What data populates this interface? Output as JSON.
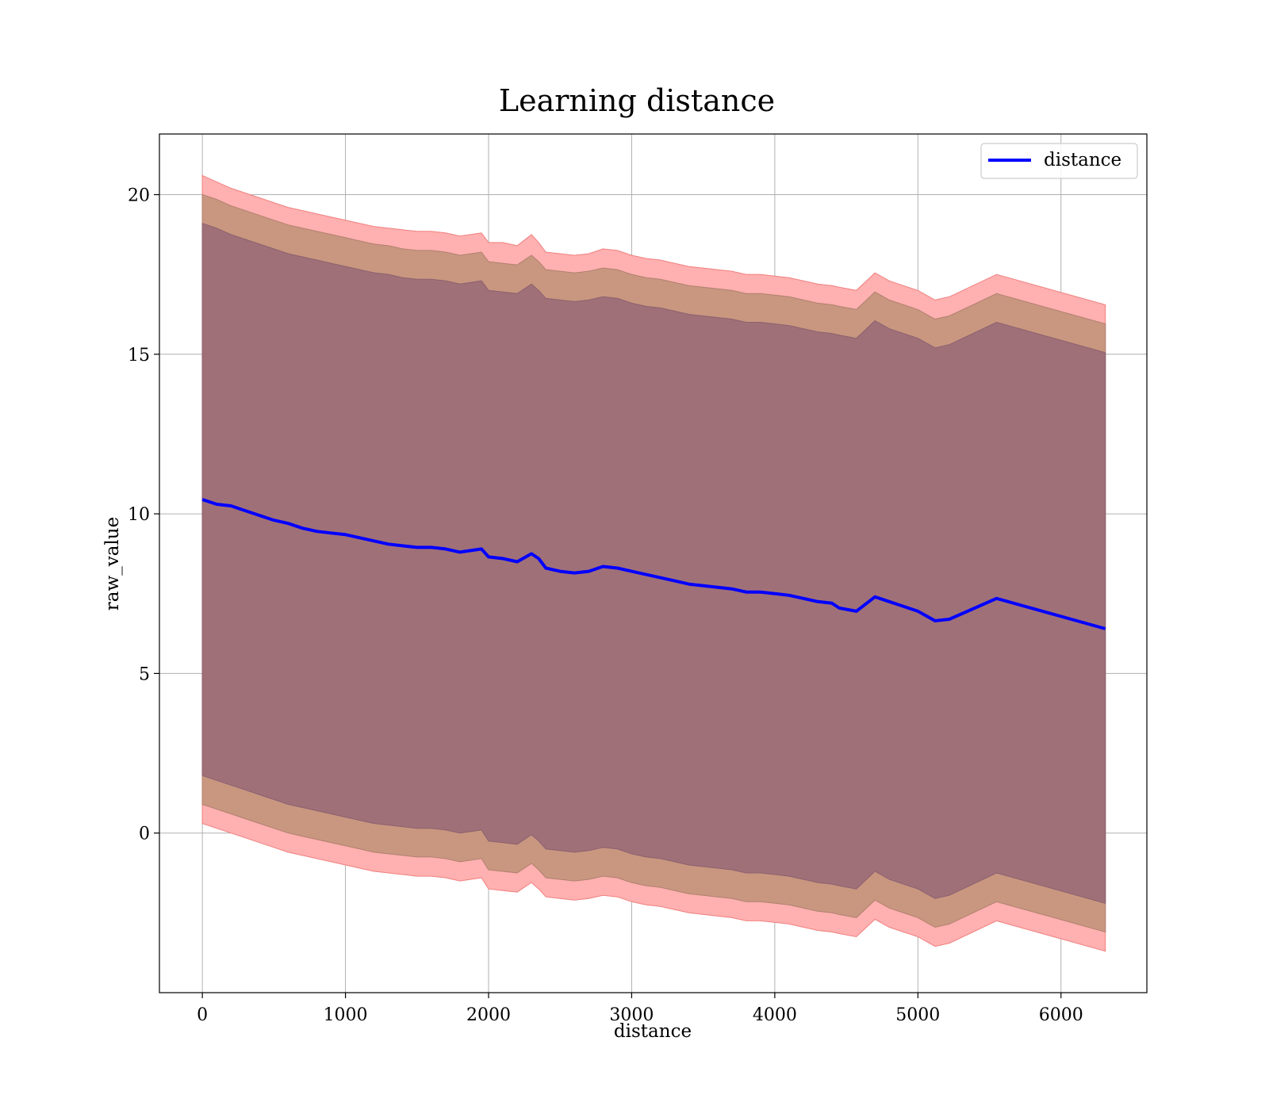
{
  "chart_data": {
    "type": "line",
    "title": "Learning distance",
    "xlabel": "distance",
    "ylabel": "raw_value",
    "xlim": [
      -300,
      6600
    ],
    "ylim": [
      -5,
      21.9
    ],
    "xticks": [
      0,
      1000,
      2000,
      3000,
      4000,
      5000,
      6000
    ],
    "yticks": [
      0,
      5,
      10,
      15,
      20
    ],
    "grid": true,
    "legend": {
      "placement": "top-right",
      "entries": [
        "distance"
      ]
    },
    "colors": {
      "line": "#0000ff",
      "band_outer": "#ffb0b0",
      "band_middle": "#c9977f",
      "band_inner": "#a07078",
      "grid": "#b0b0b0"
    },
    "series": [
      {
        "name": "distance",
        "x": [
          0,
          100,
          200,
          300,
          400,
          500,
          600,
          700,
          800,
          900,
          1000,
          1100,
          1200,
          1300,
          1400,
          1500,
          1600,
          1700,
          1800,
          1950,
          2000,
          2100,
          2200,
          2300,
          2350,
          2400,
          2500,
          2600,
          2700,
          2800,
          2900,
          3000,
          3100,
          3200,
          3300,
          3400,
          3500,
          3600,
          3700,
          3800,
          3900,
          4000,
          4100,
          4200,
          4300,
          4400,
          4450,
          4570,
          4700,
          4800,
          5000,
          5120,
          5220,
          5550,
          6310
        ],
        "y": [
          10.45,
          10.3,
          10.25,
          10.1,
          9.95,
          9.8,
          9.7,
          9.55,
          9.45,
          9.4,
          9.35,
          9.25,
          9.15,
          9.05,
          9.0,
          8.95,
          8.95,
          8.9,
          8.8,
          8.9,
          8.65,
          8.6,
          8.5,
          8.75,
          8.6,
          8.3,
          8.2,
          8.15,
          8.2,
          8.35,
          8.3,
          8.2,
          8.1,
          8.0,
          7.9,
          7.8,
          7.75,
          7.7,
          7.65,
          7.55,
          7.55,
          7.5,
          7.45,
          7.35,
          7.25,
          7.2,
          7.05,
          6.95,
          7.4,
          7.25,
          6.95,
          6.65,
          6.7,
          7.35,
          6.4
        ],
        "band_outer_upper": [
          20.6,
          20.4,
          20.2,
          20.05,
          19.9,
          19.75,
          19.6,
          19.5,
          19.4,
          19.3,
          19.2,
          19.1,
          19.0,
          18.95,
          18.9,
          18.85,
          18.85,
          18.8,
          18.7,
          18.8,
          18.5,
          18.5,
          18.4,
          18.75,
          18.5,
          18.2,
          18.15,
          18.1,
          18.15,
          18.3,
          18.25,
          18.1,
          18.0,
          17.95,
          17.85,
          17.75,
          17.7,
          17.65,
          17.6,
          17.5,
          17.5,
          17.45,
          17.4,
          17.3,
          17.2,
          17.15,
          17.1,
          17.0,
          17.55,
          17.3,
          17.0,
          16.7,
          16.8,
          17.5,
          16.55
        ],
        "band_middle_upper": [
          20.0,
          19.85,
          19.65,
          19.5,
          19.35,
          19.2,
          19.05,
          18.95,
          18.85,
          18.75,
          18.65,
          18.55,
          18.45,
          18.4,
          18.3,
          18.25,
          18.25,
          18.2,
          18.1,
          18.2,
          17.9,
          17.85,
          17.8,
          18.1,
          17.9,
          17.65,
          17.6,
          17.55,
          17.6,
          17.7,
          17.65,
          17.5,
          17.4,
          17.35,
          17.25,
          17.15,
          17.1,
          17.05,
          17.0,
          16.9,
          16.9,
          16.85,
          16.8,
          16.7,
          16.6,
          16.55,
          16.5,
          16.4,
          16.95,
          16.7,
          16.4,
          16.1,
          16.2,
          16.9,
          15.95
        ],
        "band_inner_upper": [
          19.1,
          18.95,
          18.75,
          18.6,
          18.45,
          18.3,
          18.15,
          18.05,
          17.95,
          17.85,
          17.75,
          17.65,
          17.55,
          17.5,
          17.4,
          17.35,
          17.35,
          17.3,
          17.2,
          17.3,
          17.0,
          16.95,
          16.9,
          17.2,
          17.0,
          16.75,
          16.7,
          16.65,
          16.7,
          16.8,
          16.75,
          16.6,
          16.5,
          16.45,
          16.35,
          16.25,
          16.2,
          16.15,
          16.1,
          16.0,
          16.0,
          15.95,
          15.9,
          15.8,
          15.7,
          15.65,
          15.6,
          15.5,
          16.05,
          15.8,
          15.5,
          15.2,
          15.3,
          16.0,
          15.05
        ],
        "band_inner_lower": [
          1.8,
          1.65,
          1.5,
          1.35,
          1.2,
          1.05,
          0.9,
          0.8,
          0.7,
          0.6,
          0.5,
          0.4,
          0.3,
          0.25,
          0.2,
          0.15,
          0.15,
          0.1,
          0.0,
          0.1,
          -0.25,
          -0.3,
          -0.35,
          -0.05,
          -0.25,
          -0.5,
          -0.55,
          -0.6,
          -0.55,
          -0.45,
          -0.5,
          -0.65,
          -0.75,
          -0.8,
          -0.9,
          -1.0,
          -1.05,
          -1.1,
          -1.15,
          -1.25,
          -1.25,
          -1.3,
          -1.35,
          -1.45,
          -1.55,
          -1.6,
          -1.65,
          -1.75,
          -1.2,
          -1.45,
          -1.75,
          -2.05,
          -1.95,
          -1.25,
          -2.2
        ],
        "band_middle_lower": [
          0.9,
          0.75,
          0.6,
          0.45,
          0.3,
          0.15,
          0.0,
          -0.1,
          -0.2,
          -0.3,
          -0.4,
          -0.5,
          -0.6,
          -0.65,
          -0.7,
          -0.75,
          -0.75,
          -0.8,
          -0.9,
          -0.8,
          -1.15,
          -1.2,
          -1.25,
          -0.95,
          -1.15,
          -1.4,
          -1.45,
          -1.5,
          -1.45,
          -1.35,
          -1.4,
          -1.55,
          -1.65,
          -1.7,
          -1.8,
          -1.9,
          -1.95,
          -2.0,
          -2.05,
          -2.15,
          -2.15,
          -2.2,
          -2.25,
          -2.35,
          -2.45,
          -2.5,
          -2.55,
          -2.65,
          -2.1,
          -2.35,
          -2.65,
          -2.95,
          -2.85,
          -2.15,
          -3.1
        ],
        "band_outer_lower": [
          0.3,
          0.15,
          0.0,
          -0.15,
          -0.3,
          -0.45,
          -0.6,
          -0.7,
          -0.8,
          -0.9,
          -1.0,
          -1.1,
          -1.2,
          -1.25,
          -1.3,
          -1.35,
          -1.35,
          -1.4,
          -1.5,
          -1.4,
          -1.75,
          -1.8,
          -1.85,
          -1.55,
          -1.75,
          -2.0,
          -2.05,
          -2.1,
          -2.05,
          -1.95,
          -2.0,
          -2.15,
          -2.25,
          -2.3,
          -2.4,
          -2.5,
          -2.55,
          -2.6,
          -2.65,
          -2.75,
          -2.75,
          -2.8,
          -2.85,
          -2.95,
          -3.05,
          -3.1,
          -3.15,
          -3.25,
          -2.7,
          -2.95,
          -3.25,
          -3.55,
          -3.45,
          -2.75,
          -3.7
        ]
      }
    ]
  }
}
